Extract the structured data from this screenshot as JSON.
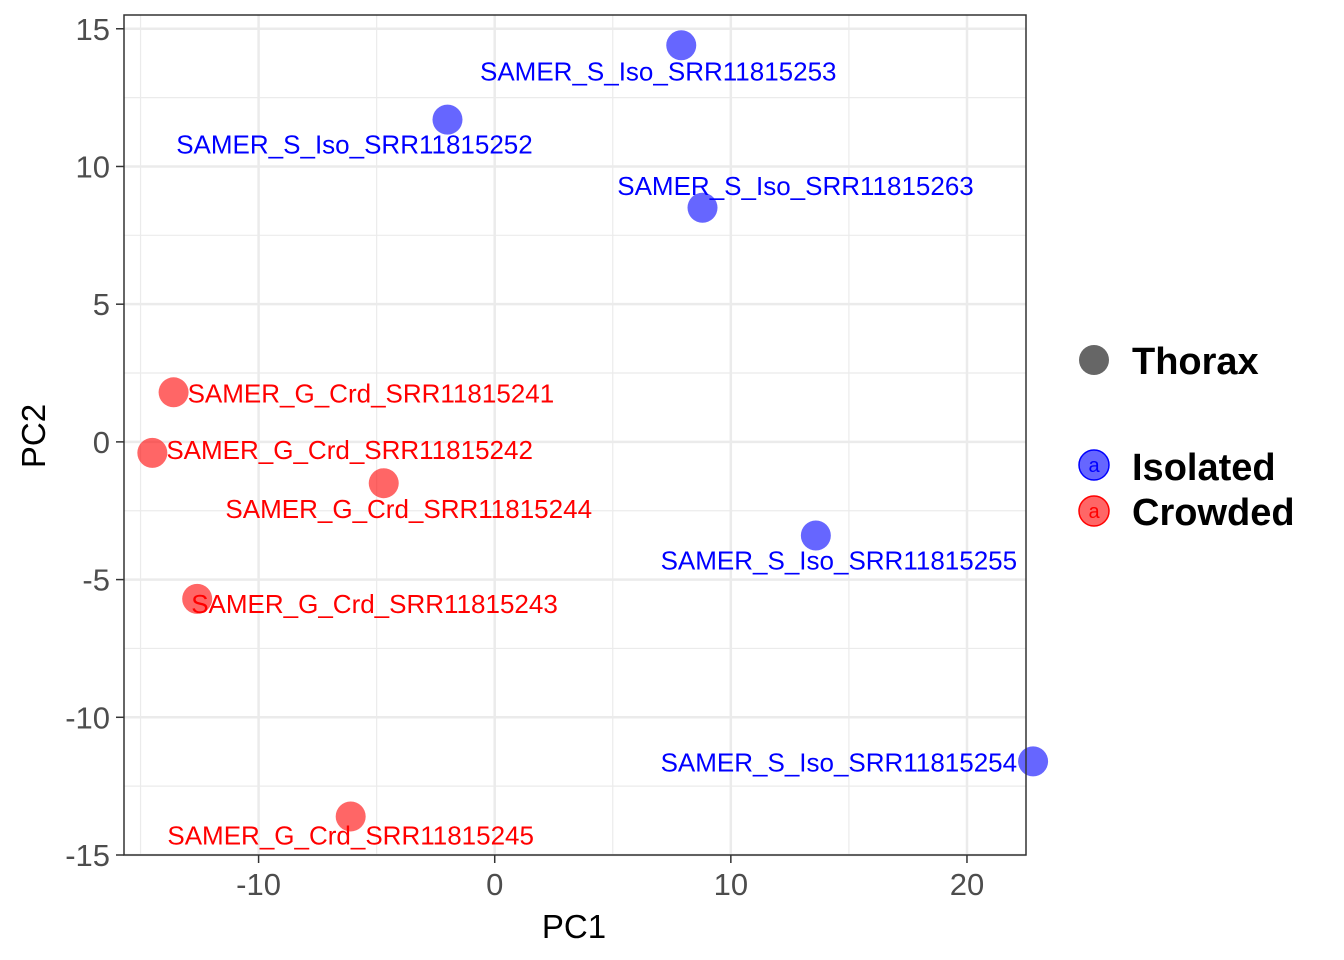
{
  "chart_data": {
    "type": "scatter",
    "xlabel": "PC1",
    "ylabel": "PC2",
    "xlim": [
      -15.7,
      22.5
    ],
    "ylim": [
      -15,
      15.5
    ],
    "xticks": [
      -10,
      0,
      10,
      20
    ],
    "yticks": [
      -15,
      -10,
      -5,
      0,
      5,
      10,
      15
    ],
    "grid": true,
    "legend": {
      "shape_title": "Thorax",
      "shape_color": "#666666",
      "entries": [
        {
          "name": "Isolated",
          "color": "#0000FF",
          "key_text": "a"
        },
        {
          "name": "Crowded",
          "color": "#FF0000",
          "key_text": "a"
        }
      ]
    },
    "series": [
      {
        "name": "Isolated",
        "color": "#0000FF",
        "points": [
          {
            "label": "SAMER_S_Iso_SRR11815253",
            "x": 7.9,
            "y": 14.4
          },
          {
            "label": "SAMER_S_Iso_SRR11815252",
            "x": -2.0,
            "y": 11.7
          },
          {
            "label": "SAMER_S_Iso_SRR11815263",
            "x": 8.8,
            "y": 8.5
          },
          {
            "label": "SAMER_S_Iso_SRR11815255",
            "x": 13.6,
            "y": -3.4
          },
          {
            "label": "SAMER_S_Iso_SRR11815254",
            "x": 22.8,
            "y": -11.6
          }
        ]
      },
      {
        "name": "Crowded",
        "color": "#FF0000",
        "points": [
          {
            "label": "SAMER_G_Crd_SRR11815241",
            "x": -13.6,
            "y": 1.8
          },
          {
            "label": "SAMER_G_Crd_SRR11815242",
            "x": -14.5,
            "y": -0.4
          },
          {
            "label": "SAMER_G_Crd_SRR11815244",
            "x": -4.7,
            "y": -1.5
          },
          {
            "label": "SAMER_G_Crd_SRR11815243",
            "x": -12.6,
            "y": -5.7
          },
          {
            "label": "SAMER_G_Crd_SRR11815245",
            "x": -6.1,
            "y": -13.6
          }
        ]
      }
    ]
  }
}
